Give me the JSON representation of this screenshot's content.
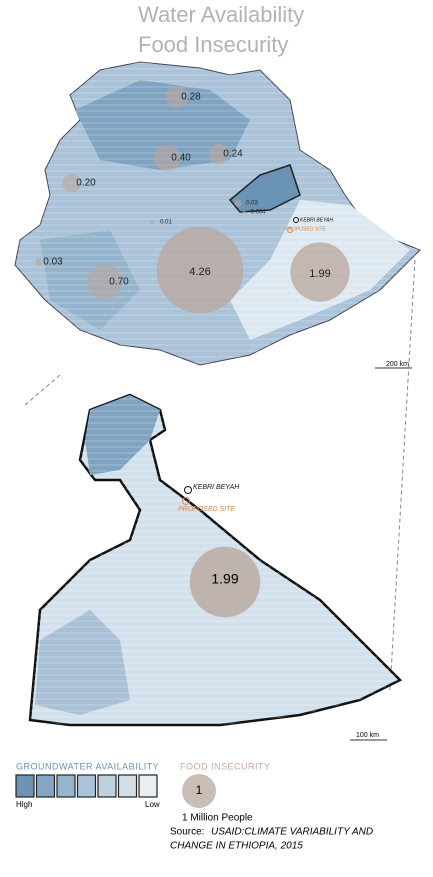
{
  "header": {
    "title_lines": [
      "Water Availability",
      "Food Insecurity"
    ]
  },
  "main_map": {
    "labels": [
      "0.28",
      "0.40",
      "0.24",
      "0.20",
      "0.03",
      "0.70",
      "4.26",
      "1.99",
      "0.01",
      "0.03",
      "0.004"
    ],
    "site_name": "KEBRI BEYAH",
    "site_note": "PROPOSED SITE",
    "scale": "200 km"
  },
  "inset_map": {
    "labels": [
      "1.99"
    ],
    "site_name": "KEBRI BEYAH",
    "site_note": "PROPOSED SITE",
    "scale": "100 km"
  },
  "legend": {
    "groundwater_title": "GROUNDWATER  AVAILABILITY",
    "high": "High",
    "low": "Low",
    "food_title": "FOOD   INSECURITY",
    "bubble_value": "1",
    "bubble_caption": "1 Million People"
  },
  "source": {
    "label": "Source:",
    "lines": [
      "USAID:CLIMATE VARIABILITY AND",
      "CHANGE IN ETHIOPIA, 2015"
    ]
  }
}
